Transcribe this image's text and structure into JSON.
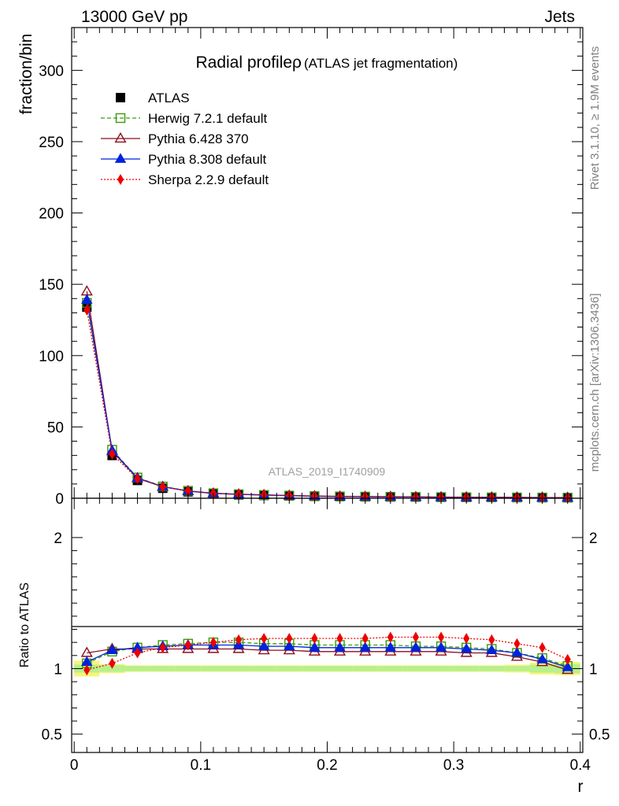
{
  "header": {
    "energy": "13000 GeV pp",
    "category": "Jets"
  },
  "side_text": {
    "rivet": "Rivet 3.1.10, ≥ 1.9M events",
    "source": "mcplots.cern.ch [arXiv:1306.3436]"
  },
  "watermark": "ATLAS_2019_I1740909",
  "chart_data": [
    {
      "type": "line",
      "title": "Radial profileρ",
      "subtitle": "(ATLAS jet fragmentation)",
      "ylabel": "fraction/bin",
      "xlim": [
        -0.002,
        0.402
      ],
      "ylim": [
        0,
        330
      ],
      "y_ticks": [
        0,
        50,
        100,
        150,
        200,
        250,
        300
      ],
      "x": [
        0.01,
        0.03,
        0.05,
        0.07,
        0.09,
        0.11,
        0.13,
        0.15,
        0.17,
        0.19,
        0.21,
        0.23,
        0.25,
        0.27,
        0.29,
        0.31,
        0.33,
        0.35,
        0.37,
        0.39
      ],
      "legend_position": "top-left",
      "series": [
        {
          "name": "ATLAS",
          "color": "#000000",
          "marker": "square-filled",
          "line": "none",
          "values": [
            134,
            30,
            12.5,
            7,
            4.5,
            3,
            2.4,
            2,
            1.6,
            1.3,
            1.1,
            1.0,
            0.9,
            0.8,
            0.7,
            0.62,
            0.55,
            0.5,
            0.45,
            0.4
          ]
        },
        {
          "name": "Herwig 7.2.1 default",
          "color": "#3a9a0a",
          "marker": "square-open",
          "line": "dashed",
          "values": [
            137,
            34,
            14.5,
            8.2,
            5.2,
            3.5,
            2.8,
            2.3,
            1.85,
            1.5,
            1.27,
            1.15,
            1.03,
            0.92,
            0.8,
            0.71,
            0.62,
            0.56,
            0.49,
            0.41
          ]
        },
        {
          "name": "Pythia 6.428 370",
          "color": "#8b0e1e",
          "marker": "triangle-open",
          "line": "solid",
          "values": [
            145,
            33,
            14,
            8,
            5,
            3.35,
            2.7,
            2.25,
            1.8,
            1.45,
            1.22,
            1.11,
            1.0,
            0.89,
            0.78,
            0.69,
            0.6,
            0.53,
            0.46,
            0.4
          ]
        },
        {
          "name": "Pythia 8.308 default",
          "color": "#0022dd",
          "marker": "triangle-filled",
          "line": "solid",
          "values": [
            139,
            33.5,
            14.2,
            8.1,
            5.1,
            3.45,
            2.75,
            2.3,
            1.85,
            1.49,
            1.26,
            1.14,
            1.02,
            0.91,
            0.8,
            0.71,
            0.62,
            0.55,
            0.48,
            0.4
          ]
        },
        {
          "name": "Sherpa 2.2.9 default",
          "color": "#ee0000",
          "marker": "diamond-filled",
          "line": "dotted",
          "values": [
            132,
            31,
            13.8,
            8,
            5.15,
            3.5,
            2.88,
            2.45,
            1.95,
            1.58,
            1.34,
            1.22,
            1.1,
            0.98,
            0.86,
            0.76,
            0.66,
            0.59,
            0.51,
            0.42
          ]
        }
      ]
    },
    {
      "type": "line",
      "ylabel": "Ratio to ATLAS",
      "xlabel": "r",
      "xlim": [
        -0.002,
        0.402
      ],
      "ylim": [
        0.36,
        2.3
      ],
      "y_ticks": [
        0.5,
        1,
        2
      ],
      "y_tick_labels": [
        "0.5",
        "1",
        "2"
      ],
      "x_ticks": [
        0,
        0.1,
        0.2,
        0.3,
        0.4
      ],
      "x_tick_labels": [
        "0",
        "0.1",
        "0.2",
        "0.3",
        "0.4"
      ],
      "x": [
        0.01,
        0.03,
        0.05,
        0.07,
        0.09,
        0.11,
        0.13,
        0.15,
        0.17,
        0.19,
        0.21,
        0.23,
        0.25,
        0.27,
        0.29,
        0.31,
        0.33,
        0.35,
        0.37,
        0.39
      ],
      "band_inner": [
        0.03,
        0.025,
        0.02,
        0.02,
        0.02,
        0.02,
        0.02,
        0.02,
        0.02,
        0.02,
        0.02,
        0.02,
        0.02,
        0.02,
        0.02,
        0.02,
        0.02,
        0.02,
        0.03,
        0.035
      ],
      "band_outer": [
        0.06,
        0.035,
        0.025,
        0.025,
        0.025,
        0.025,
        0.025,
        0.025,
        0.025,
        0.025,
        0.025,
        0.025,
        0.025,
        0.025,
        0.025,
        0.025,
        0.025,
        0.03,
        0.045,
        0.05
      ],
      "series": [
        {
          "name": "Herwig 7.2.1 default",
          "color": "#3a9a0a",
          "marker": "square-open",
          "line": "dashed",
          "values": [
            1.04,
            1.13,
            1.16,
            1.18,
            1.19,
            1.2,
            1.2,
            1.19,
            1.19,
            1.18,
            1.18,
            1.18,
            1.18,
            1.17,
            1.17,
            1.16,
            1.15,
            1.12,
            1.08,
            1.02
          ]
        },
        {
          "name": "Pythia 6.428 370",
          "color": "#8b0e1e",
          "marker": "triangle-open",
          "line": "solid",
          "values": [
            1.12,
            1.15,
            1.15,
            1.15,
            1.15,
            1.15,
            1.15,
            1.14,
            1.14,
            1.13,
            1.13,
            1.13,
            1.13,
            1.13,
            1.13,
            1.12,
            1.12,
            1.09,
            1.05,
            0.99
          ]
        },
        {
          "name": "Pythia 8.308 default",
          "color": "#0022dd",
          "marker": "triangle-filled",
          "line": "solid",
          "values": [
            1.05,
            1.14,
            1.16,
            1.17,
            1.18,
            1.18,
            1.18,
            1.17,
            1.17,
            1.16,
            1.16,
            1.16,
            1.16,
            1.16,
            1.16,
            1.15,
            1.14,
            1.12,
            1.07,
            1.01
          ]
        },
        {
          "name": "Sherpa 2.2.9 default",
          "color": "#ee0000",
          "marker": "diamond-filled",
          "line": "dotted",
          "values": [
            0.99,
            1.04,
            1.12,
            1.16,
            1.18,
            1.2,
            1.22,
            1.23,
            1.23,
            1.23,
            1.23,
            1.23,
            1.24,
            1.24,
            1.24,
            1.23,
            1.22,
            1.19,
            1.16,
            1.07
          ]
        }
      ]
    }
  ]
}
